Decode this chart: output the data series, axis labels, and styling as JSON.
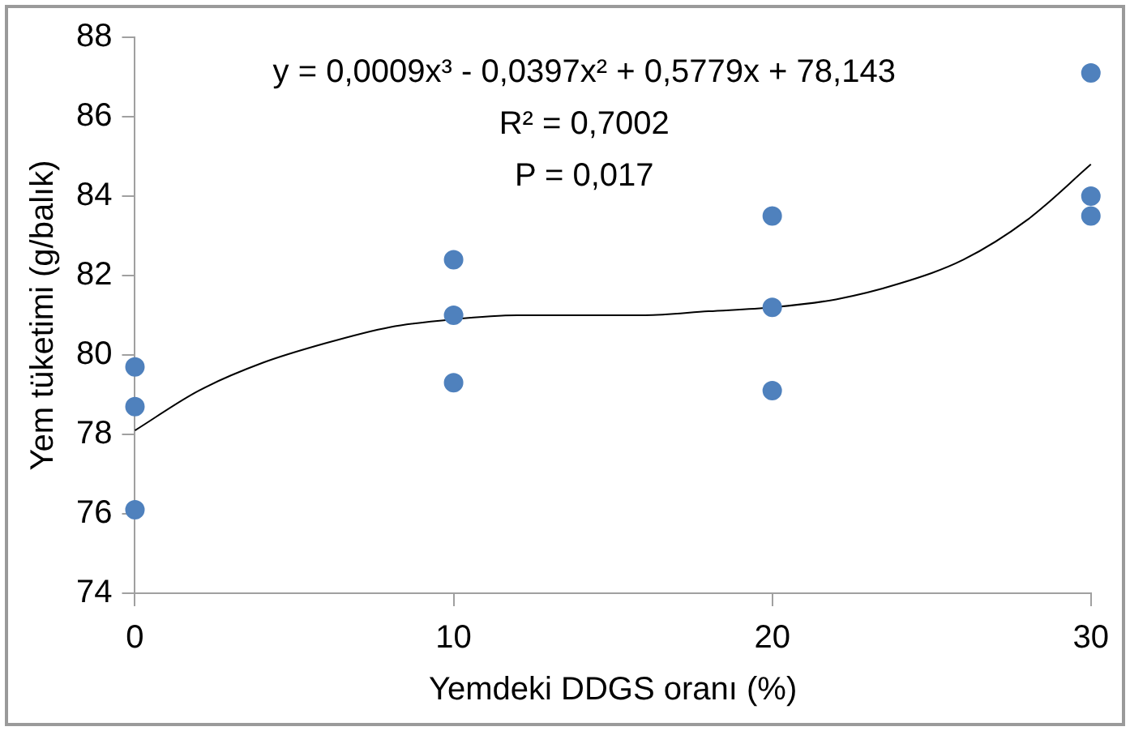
{
  "chart_data": {
    "type": "scatter",
    "xlabel": "Yemdeki DDGS oranı (%)",
    "ylabel": "Yem tüketimi (g/balık)",
    "annotations": [
      "y = 0,0009x³ - 0,0397x² + 0,5779x + 78,143",
      "R² = 0,7002",
      "P = 0,017"
    ],
    "series": [
      {
        "color": "#4f81bd",
        "x": [
          0,
          0,
          0,
          10,
          10,
          10,
          20,
          20,
          20,
          30,
          30,
          30
        ],
        "values": [
          79.7,
          78.7,
          76.1,
          82.4,
          81.0,
          79.3,
          83.5,
          81.2,
          79.1,
          87.1,
          84.0,
          83.5
        ]
      },
      {
        "type": "line",
        "color": "#000000",
        "marker": "none",
        "x": [
          0,
          2,
          4,
          6,
          8,
          10,
          12,
          14,
          16,
          18,
          20,
          22,
          24,
          26,
          28,
          30
        ],
        "values": [
          78.1,
          79.1,
          79.8,
          80.3,
          80.7,
          80.9,
          81.0,
          81.0,
          81.0,
          81.1,
          81.2,
          81.4,
          81.8,
          82.4,
          83.4,
          84.8
        ]
      }
    ],
    "xlim": [
      0,
      30
    ],
    "xticks": [
      0,
      10,
      20,
      30
    ],
    "ylim": [
      74,
      88
    ],
    "yticks": [
      74,
      76,
      78,
      80,
      82,
      84,
      86,
      88
    ],
    "grid": false,
    "legend": false,
    "marker": "circle"
  }
}
